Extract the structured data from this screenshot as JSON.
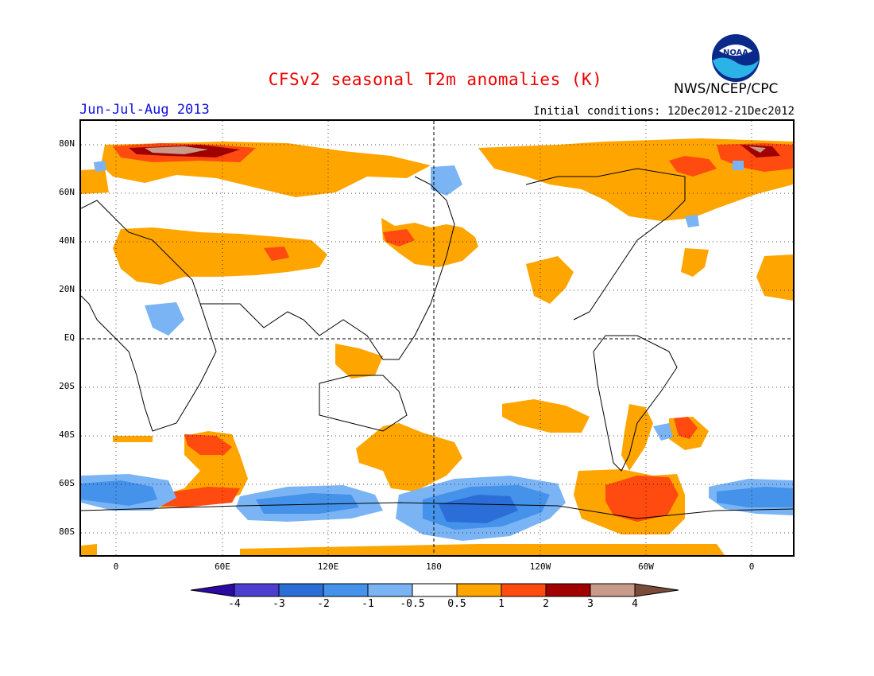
{
  "title": "CFSv2 seasonal T2m anomalies (K)",
  "season": "Jun-Jul-Aug 2013",
  "initial_conditions": "Initial conditions: 12Dec2012-21Dec2012",
  "agency": "NWS/NCEP/CPC",
  "logo_text": "NOAA",
  "lat_labels": [
    "80N",
    "60N",
    "40N",
    "20N",
    "EQ",
    "20S",
    "40S",
    "60S",
    "80S"
  ],
  "lon_labels": [
    "0",
    "60E",
    "120E",
    "180",
    "120W",
    "60W",
    "0"
  ],
  "colorbar": {
    "labels": [
      "-4",
      "-3",
      "-2",
      "-1",
      "-0.5",
      "0.5",
      "1",
      "2",
      "3",
      "4"
    ],
    "colors": [
      "#2a0aa0",
      "#4c3fd0",
      "#2b6ed8",
      "#4492ea",
      "#7ab4f5",
      "#ffffff",
      "#ffa500",
      "#ff4a10",
      "#a00000",
      "#c89a8a",
      "#7a4a3a"
    ]
  },
  "colors": {
    "title": "#ee0000",
    "season": "#1010e0",
    "warm_05_1": "#ffa500",
    "warm_1_2": "#ff4a10",
    "warm_2_3": "#a00000",
    "warm_3_4": "#c89a8a",
    "cold_05_1": "#7ab4f5",
    "cold_1_2": "#4492ea",
    "cold_2_3": "#2b6ed8"
  }
}
